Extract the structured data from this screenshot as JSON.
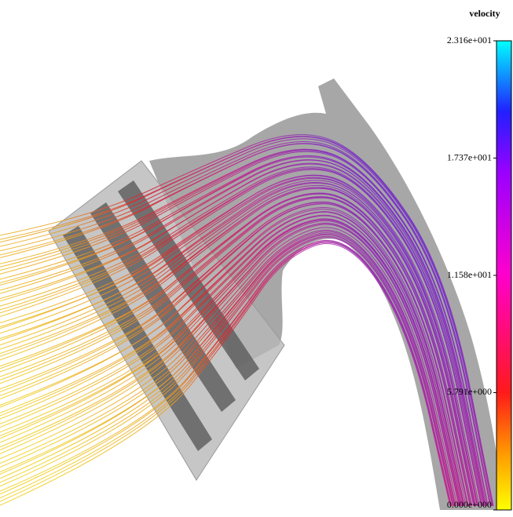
{
  "colorbar": {
    "title": "velocity",
    "range": [
      0,
      23.16
    ],
    "ticks": [
      {
        "value": 23.16,
        "label": "2.316e+001"
      },
      {
        "value": 17.37,
        "label": "1.737e+001"
      },
      {
        "value": 11.58,
        "label": "1.158e+001"
      },
      {
        "value": 5.791,
        "label": "5.791e+000"
      },
      {
        "value": 0,
        "label": "0.000e+000"
      }
    ]
  }
}
